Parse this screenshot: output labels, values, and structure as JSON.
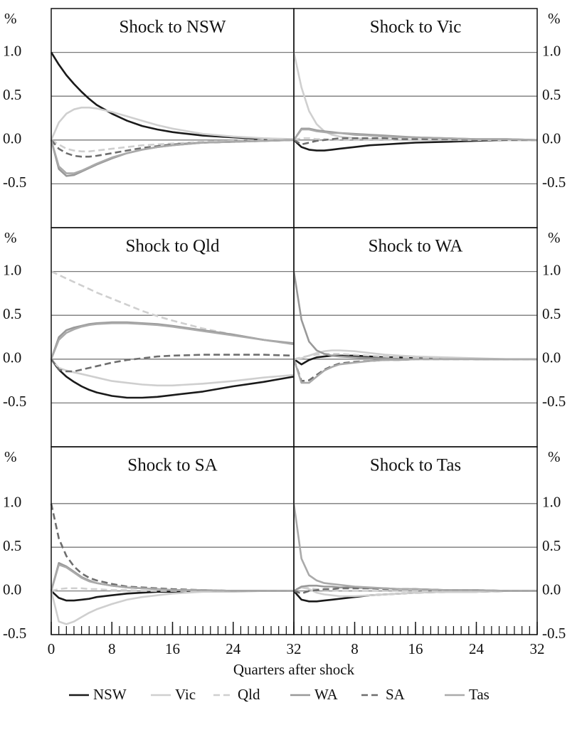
{
  "chart_data": [
    {
      "type": "line",
      "title": "Shock to NSW",
      "ylabel": "%",
      "grid": true,
      "xlim": [
        0,
        32
      ],
      "ylim": [
        -1,
        1.5
      ],
      "xticks": [
        0,
        8,
        16,
        24,
        32
      ],
      "yticks": [
        {
          "value": -0.5,
          "label": "-0.5"
        },
        {
          "value": 0,
          "label": "0.0"
        },
        {
          "value": 0.5,
          "label": "0.5"
        },
        {
          "value": 1,
          "label": "1.0"
        }
      ],
      "x": [
        0,
        1,
        2,
        3,
        4,
        5,
        6,
        8,
        10,
        12,
        14,
        16,
        20,
        24,
        28,
        32
      ],
      "series": [
        {
          "name": "NSW",
          "color": "#1a1a1a",
          "dash": false,
          "values": [
            1,
            0.86,
            0.74,
            0.64,
            0.55,
            0.47,
            0.4,
            0.3,
            0.22,
            0.16,
            0.12,
            0.09,
            0.05,
            0.03,
            0.01,
            0
          ]
        },
        {
          "name": "Vic",
          "color": "#cfcfcf",
          "dash": false,
          "values": [
            0,
            0.2,
            0.3,
            0.35,
            0.37,
            0.37,
            0.36,
            0.32,
            0.27,
            0.22,
            0.17,
            0.13,
            0.07,
            0.04,
            0.02,
            0.01
          ]
        },
        {
          "name": "Qld",
          "color": "#cfcfcf",
          "dash": true,
          "values": [
            0,
            -0.05,
            -0.1,
            -0.12,
            -0.13,
            -0.13,
            -0.12,
            -0.1,
            -0.08,
            -0.06,
            -0.05,
            -0.04,
            -0.02,
            -0.01,
            0,
            0
          ]
        },
        {
          "name": "WA",
          "color": "#999999",
          "dash": false,
          "values": [
            0,
            -0.33,
            -0.41,
            -0.4,
            -0.36,
            -0.32,
            -0.28,
            -0.21,
            -0.15,
            -0.11,
            -0.08,
            -0.06,
            -0.03,
            -0.02,
            -0.01,
            0
          ]
        },
        {
          "name": "SA",
          "color": "#6e6e6e",
          "dash": true,
          "values": [
            0,
            -0.1,
            -0.15,
            -0.18,
            -0.19,
            -0.19,
            -0.18,
            -0.15,
            -0.12,
            -0.09,
            -0.07,
            -0.05,
            -0.03,
            -0.02,
            -0.01,
            0
          ]
        },
        {
          "name": "Tas",
          "color": "#aaaaaa",
          "dash": false,
          "values": [
            0,
            -0.3,
            -0.38,
            -0.38,
            -0.35,
            -0.31,
            -0.27,
            -0.2,
            -0.15,
            -0.11,
            -0.08,
            -0.06,
            -0.03,
            -0.02,
            -0.01,
            0
          ]
        }
      ]
    },
    {
      "type": "line",
      "title": "Shock to Vic",
      "ylabel": "%",
      "grid": true,
      "xlim": [
        0,
        32
      ],
      "ylim": [
        -1,
        1.5
      ],
      "xticks": [],
      "yticks": [
        {
          "value": -0.5,
          "label": "-0.5"
        },
        {
          "value": 0,
          "label": "0.0"
        },
        {
          "value": 0.5,
          "label": "0.5"
        },
        {
          "value": 1,
          "label": "1.0"
        }
      ],
      "x": [
        0,
        1,
        2,
        3,
        4,
        5,
        6,
        8,
        10,
        12,
        14,
        16,
        20,
        24,
        28,
        32
      ],
      "series": [
        {
          "name": "NSW",
          "color": "#1a1a1a",
          "dash": false,
          "values": [
            0,
            -0.08,
            -0.11,
            -0.12,
            -0.12,
            -0.11,
            -0.1,
            -0.08,
            -0.06,
            -0.05,
            -0.04,
            -0.03,
            -0.02,
            -0.01,
            0,
            0
          ]
        },
        {
          "name": "Vic",
          "color": "#cfcfcf",
          "dash": false,
          "values": [
            1,
            0.6,
            0.33,
            0.18,
            0.1,
            0.06,
            0.04,
            0.02,
            0.01,
            0.01,
            0,
            0,
            0,
            0,
            0,
            0
          ]
        },
        {
          "name": "Qld",
          "color": "#cfcfcf",
          "dash": true,
          "values": [
            0,
            0.02,
            0.02,
            0.01,
            0.01,
            0,
            0,
            0,
            0,
            0,
            0,
            0,
            0,
            0,
            0,
            0
          ]
        },
        {
          "name": "WA",
          "color": "#999999",
          "dash": false,
          "values": [
            0,
            0.13,
            0.13,
            0.11,
            0.1,
            0.09,
            0.08,
            0.07,
            0.06,
            0.05,
            0.04,
            0.03,
            0.02,
            0.01,
            0.01,
            0
          ]
        },
        {
          "name": "SA",
          "color": "#6e6e6e",
          "dash": true,
          "values": [
            0,
            -0.05,
            -0.03,
            -0.01,
            0,
            0.01,
            0.02,
            0.02,
            0.02,
            0.02,
            0.01,
            0.01,
            0.01,
            0,
            0,
            0
          ]
        },
        {
          "name": "Tas",
          "color": "#aaaaaa",
          "dash": false,
          "values": [
            0,
            0.12,
            0.12,
            0.1,
            0.09,
            0.08,
            0.08,
            0.06,
            0.05,
            0.04,
            0.03,
            0.03,
            0.02,
            0.01,
            0.01,
            0
          ]
        }
      ]
    },
    {
      "type": "line",
      "title": "Shock to Qld",
      "ylabel": "%",
      "grid": true,
      "xlim": [
        0,
        32
      ],
      "ylim": [
        -1,
        1.5
      ],
      "xticks": [],
      "yticks": [
        {
          "value": -0.5,
          "label": "-0.5"
        },
        {
          "value": 0,
          "label": "0.0"
        },
        {
          "value": 0.5,
          "label": "0.5"
        },
        {
          "value": 1,
          "label": "1.0"
        }
      ],
      "x": [
        0,
        1,
        2,
        3,
        4,
        5,
        6,
        8,
        10,
        12,
        14,
        16,
        20,
        24,
        28,
        32
      ],
      "series": [
        {
          "name": "NSW",
          "color": "#1a1a1a",
          "dash": false,
          "values": [
            0,
            -0.12,
            -0.2,
            -0.26,
            -0.31,
            -0.35,
            -0.38,
            -0.42,
            -0.44,
            -0.44,
            -0.43,
            -0.41,
            -0.37,
            -0.31,
            -0.26,
            -0.2
          ]
        },
        {
          "name": "Vic",
          "color": "#cfcfcf",
          "dash": false,
          "values": [
            0,
            -0.1,
            -0.13,
            -0.15,
            -0.17,
            -0.19,
            -0.21,
            -0.25,
            -0.27,
            -0.29,
            -0.3,
            -0.3,
            -0.28,
            -0.25,
            -0.21,
            -0.18
          ]
        },
        {
          "name": "Qld",
          "color": "#cfcfcf",
          "dash": true,
          "values": [
            1,
            0.96,
            0.92,
            0.88,
            0.84,
            0.8,
            0.76,
            0.69,
            0.62,
            0.55,
            0.49,
            0.44,
            0.35,
            0.28,
            0.22,
            0.17
          ]
        },
        {
          "name": "WA",
          "color": "#999999",
          "dash": false,
          "values": [
            0,
            0.25,
            0.33,
            0.36,
            0.38,
            0.4,
            0.41,
            0.42,
            0.42,
            0.41,
            0.4,
            0.38,
            0.33,
            0.28,
            0.22,
            0.18
          ]
        },
        {
          "name": "SA",
          "color": "#6e6e6e",
          "dash": true,
          "values": [
            0,
            -0.12,
            -0.14,
            -0.14,
            -0.12,
            -0.1,
            -0.08,
            -0.04,
            -0.01,
            0.01,
            0.03,
            0.04,
            0.05,
            0.05,
            0.05,
            0.04
          ]
        },
        {
          "name": "Tas",
          "color": "#aaaaaa",
          "dash": false,
          "values": [
            0,
            0.22,
            0.3,
            0.34,
            0.37,
            0.39,
            0.4,
            0.41,
            0.41,
            0.4,
            0.39,
            0.37,
            0.32,
            0.27,
            0.22,
            0.17
          ]
        }
      ]
    },
    {
      "type": "line",
      "title": "Shock to WA",
      "ylabel": "%",
      "grid": true,
      "xlim": [
        0,
        32
      ],
      "ylim": [
        -1,
        1.5
      ],
      "xticks": [],
      "yticks": [
        {
          "value": -0.5,
          "label": "-0.5"
        },
        {
          "value": 0,
          "label": "0.0"
        },
        {
          "value": 0.5,
          "label": "0.5"
        },
        {
          "value": 1,
          "label": "1.0"
        }
      ],
      "x": [
        0,
        1,
        2,
        3,
        4,
        5,
        6,
        8,
        10,
        12,
        14,
        16,
        20,
        24,
        28,
        32
      ],
      "series": [
        {
          "name": "NSW",
          "color": "#1a1a1a",
          "dash": false,
          "values": [
            0,
            -0.06,
            -0.01,
            0.02,
            0.03,
            0.04,
            0.04,
            0.04,
            0.03,
            0.02,
            0.02,
            0.01,
            0.01,
            0,
            0,
            0
          ]
        },
        {
          "name": "Vic",
          "color": "#cfcfcf",
          "dash": false,
          "values": [
            0,
            0.01,
            0.04,
            0.07,
            0.09,
            0.1,
            0.1,
            0.09,
            0.07,
            0.05,
            0.04,
            0.03,
            0.02,
            0.01,
            0,
            0
          ]
        },
        {
          "name": "Qld",
          "color": "#cfcfcf",
          "dash": true,
          "values": [
            0,
            0.02,
            0.04,
            0.05,
            0.06,
            0.06,
            0.06,
            0.05,
            0.04,
            0.03,
            0.02,
            0.02,
            0.01,
            0,
            0,
            0
          ]
        },
        {
          "name": "WA",
          "color": "#999999",
          "dash": false,
          "values": [
            1,
            0.45,
            0.2,
            0.1,
            0.06,
            0.04,
            0.03,
            0.02,
            0.01,
            0.01,
            0,
            0,
            0,
            0,
            0,
            0
          ]
        },
        {
          "name": "SA",
          "color": "#6e6e6e",
          "dash": true,
          "values": [
            0,
            -0.25,
            -0.24,
            -0.18,
            -0.12,
            -0.08,
            -0.05,
            -0.03,
            -0.02,
            -0.01,
            -0.01,
            0,
            0,
            0,
            0,
            0
          ]
        },
        {
          "name": "Tas",
          "color": "#aaaaaa",
          "dash": false,
          "values": [
            0,
            -0.27,
            -0.27,
            -0.2,
            -0.13,
            -0.09,
            -0.06,
            -0.04,
            -0.02,
            -0.01,
            -0.01,
            0,
            0,
            0,
            0,
            0
          ]
        }
      ]
    },
    {
      "type": "line",
      "title": "Shock to SA",
      "ylabel": "%",
      "xlabel": "Quarters after shock",
      "grid": true,
      "xlim": [
        0,
        32
      ],
      "ylim": [
        -0.5,
        1.65
      ],
      "xticks": [
        0,
        8,
        16,
        24,
        32
      ],
      "yticks": [
        {
          "value": -0.5,
          "label": "-0.5"
        },
        {
          "value": 0,
          "label": "0.0"
        },
        {
          "value": 0.5,
          "label": "0.5"
        },
        {
          "value": 1,
          "label": "1.0"
        }
      ],
      "x": [
        0,
        1,
        2,
        3,
        4,
        5,
        6,
        8,
        10,
        12,
        14,
        16,
        20,
        24,
        28,
        32
      ],
      "series": [
        {
          "name": "NSW",
          "color": "#1a1a1a",
          "dash": false,
          "values": [
            0,
            -0.08,
            -0.11,
            -0.11,
            -0.1,
            -0.09,
            -0.07,
            -0.05,
            -0.03,
            -0.02,
            -0.01,
            -0.01,
            0,
            0,
            0,
            0
          ]
        },
        {
          "name": "Vic",
          "color": "#cfcfcf",
          "dash": false,
          "values": [
            0,
            -0.35,
            -0.38,
            -0.35,
            -0.3,
            -0.25,
            -0.21,
            -0.15,
            -0.1,
            -0.07,
            -0.05,
            -0.03,
            -0.01,
            -0.01,
            0,
            0
          ]
        },
        {
          "name": "Qld",
          "color": "#cfcfcf",
          "dash": true,
          "values": [
            0,
            0.02,
            0.03,
            0.03,
            0.03,
            0.02,
            0.02,
            0.01,
            0.01,
            0,
            0,
            0,
            0,
            0,
            0,
            0
          ]
        },
        {
          "name": "WA",
          "color": "#999999",
          "dash": false,
          "values": [
            0,
            0.32,
            0.28,
            0.22,
            0.16,
            0.12,
            0.09,
            0.06,
            0.04,
            0.03,
            0.02,
            0.01,
            0.01,
            0,
            0,
            0
          ]
        },
        {
          "name": "SA",
          "color": "#6e6e6e",
          "dash": true,
          "values": [
            1,
            0.6,
            0.4,
            0.28,
            0.2,
            0.15,
            0.12,
            0.08,
            0.05,
            0.04,
            0.03,
            0.02,
            0.01,
            0,
            0,
            0
          ]
        },
        {
          "name": "Tas",
          "color": "#aaaaaa",
          "dash": false,
          "values": [
            0,
            0.3,
            0.27,
            0.21,
            0.15,
            0.11,
            0.09,
            0.06,
            0.04,
            0.03,
            0.02,
            0.01,
            0.01,
            0,
            0,
            0
          ]
        }
      ]
    },
    {
      "type": "line",
      "title": "Shock to Tas",
      "ylabel": "%",
      "grid": true,
      "xlim": [
        0,
        32
      ],
      "ylim": [
        -0.5,
        1.65
      ],
      "xticks": [
        8,
        16,
        24,
        32
      ],
      "yticks": [
        {
          "value": -0.5,
          "label": "-0.5"
        },
        {
          "value": 0,
          "label": "0.0"
        },
        {
          "value": 0.5,
          "label": "0.5"
        },
        {
          "value": 1,
          "label": "1.0"
        }
      ],
      "x": [
        0,
        1,
        2,
        3,
        4,
        5,
        6,
        8,
        10,
        12,
        14,
        16,
        20,
        24,
        28,
        32
      ],
      "series": [
        {
          "name": "NSW",
          "color": "#1a1a1a",
          "dash": false,
          "values": [
            0,
            -0.1,
            -0.12,
            -0.12,
            -0.11,
            -0.1,
            -0.09,
            -0.07,
            -0.05,
            -0.04,
            -0.03,
            -0.02,
            -0.01,
            -0.01,
            0,
            0
          ]
        },
        {
          "name": "Vic",
          "color": "#cfcfcf",
          "dash": false,
          "values": [
            0,
            0.04,
            0.02,
            -0.02,
            -0.04,
            -0.05,
            -0.06,
            -0.06,
            -0.05,
            -0.04,
            -0.03,
            -0.02,
            -0.01,
            -0.01,
            0,
            0
          ]
        },
        {
          "name": "Qld",
          "color": "#cfcfcf",
          "dash": true,
          "values": [
            0,
            0.05,
            0.03,
            0.02,
            0.01,
            0.01,
            0,
            0,
            0,
            0,
            0,
            0,
            0,
            0,
            0,
            0
          ]
        },
        {
          "name": "WA",
          "color": "#999999",
          "dash": false,
          "values": [
            0,
            0.05,
            0.06,
            0.06,
            0.05,
            0.05,
            0.04,
            0.04,
            0.03,
            0.03,
            0.02,
            0.02,
            0.01,
            0.01,
            0,
            0
          ]
        },
        {
          "name": "SA",
          "color": "#6e6e6e",
          "dash": true,
          "values": [
            0,
            -0.03,
            0,
            0.01,
            0.02,
            0.02,
            0.03,
            0.03,
            0.03,
            0.02,
            0.02,
            0.02,
            0.01,
            0.01,
            0,
            0
          ]
        },
        {
          "name": "Tas",
          "color": "#aaaaaa",
          "dash": false,
          "values": [
            1,
            0.37,
            0.18,
            0.12,
            0.09,
            0.08,
            0.07,
            0.05,
            0.04,
            0.03,
            0.02,
            0.02,
            0.01,
            0.01,
            0,
            0
          ]
        }
      ]
    }
  ]
}
